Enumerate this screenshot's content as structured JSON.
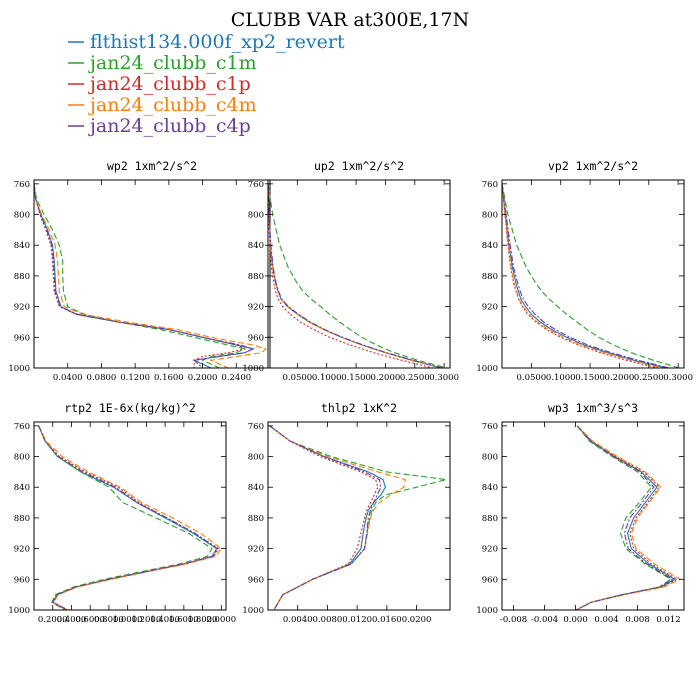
{
  "figure_title": "CLUBB VAR at300E,17N",
  "legend": [
    {
      "label": "flthist134.000f_xp2_revert",
      "color": "#1f77b4",
      "dash": ""
    },
    {
      "label": "jan24_clubb_c1m",
      "color": "#2ca02c",
      "dash": "6,3"
    },
    {
      "label": "jan24_clubb_c1p",
      "color": "#d62728",
      "dash": "2,2"
    },
    {
      "label": "jan24_clubb_c4m",
      "color": "#ff7f0e",
      "dash": "6,3"
    },
    {
      "label": "jan24_clubb_c4p",
      "color": "#6a3d9a",
      "dash": "6,2,2,2"
    }
  ],
  "chart_data": [
    {
      "type": "line",
      "title": "wp2  1xm^2/s^2",
      "xlim": [
        0.0,
        0.28
      ],
      "ylim": [
        1000,
        755
      ],
      "y_ticks": [
        760,
        800,
        840,
        880,
        920,
        960,
        1000
      ],
      "x_ticks": [
        0.04,
        0.08,
        0.12,
        0.16,
        0.2,
        0.24
      ],
      "x_tick_labels": [
        "0.0400",
        "0.0800",
        "0.1200",
        "0.1600",
        "0.2000",
        "0.2400"
      ],
      "y": [
        760,
        780,
        800,
        820,
        840,
        860,
        880,
        900,
        920,
        930,
        940,
        950,
        960,
        970,
        975,
        980,
        985,
        990,
        1000
      ],
      "series": [
        {
          "values": [
            0.0,
            0.002,
            0.008,
            0.016,
            0.022,
            0.024,
            0.025,
            0.026,
            0.032,
            0.05,
            0.1,
            0.16,
            0.2,
            0.24,
            0.26,
            0.25,
            0.22,
            0.19,
            0.21
          ]
        },
        {
          "values": [
            0.0,
            0.003,
            0.012,
            0.022,
            0.03,
            0.034,
            0.034,
            0.035,
            0.04,
            0.06,
            0.1,
            0.15,
            0.19,
            0.23,
            0.25,
            0.24,
            0.21,
            0.2,
            0.22
          ]
        },
        {
          "values": [
            0.0,
            0.002,
            0.007,
            0.014,
            0.02,
            0.022,
            0.023,
            0.024,
            0.03,
            0.05,
            0.1,
            0.16,
            0.2,
            0.24,
            0.25,
            0.23,
            0.2,
            0.19,
            0.19
          ]
        },
        {
          "values": [
            0.0,
            0.002,
            0.009,
            0.018,
            0.025,
            0.028,
            0.029,
            0.03,
            0.036,
            0.058,
            0.11,
            0.17,
            0.21,
            0.26,
            0.275,
            0.27,
            0.24,
            0.21,
            0.23
          ]
        },
        {
          "values": [
            0.0,
            0.002,
            0.008,
            0.015,
            0.021,
            0.023,
            0.024,
            0.025,
            0.031,
            0.052,
            0.1,
            0.16,
            0.2,
            0.245,
            0.26,
            0.25,
            0.22,
            0.19,
            0.2
          ]
        }
      ]
    },
    {
      "type": "line",
      "title": "up2  1xm^2/s^2",
      "xlim": [
        0.0,
        0.31
      ],
      "ylim": [
        1000,
        755
      ],
      "y_ticks": [
        760,
        800,
        840,
        880,
        920,
        960,
        1000
      ],
      "x_ticks": [
        0.05,
        0.1,
        0.15,
        0.2,
        0.25,
        0.3
      ],
      "x_tick_labels": [
        "0.0500",
        "0.1000",
        "0.1500",
        "0.2000",
        "0.2500",
        "0.3000"
      ],
      "y": [
        760,
        800,
        840,
        870,
        890,
        900,
        910,
        920,
        930,
        940,
        950,
        960,
        970,
        980,
        990,
        1000
      ],
      "series": [
        {
          "values": [
            0.0,
            0.002,
            0.004,
            0.008,
            0.013,
            0.017,
            0.022,
            0.033,
            0.05,
            0.07,
            0.095,
            0.125,
            0.16,
            0.2,
            0.245,
            0.295
          ]
        },
        {
          "values": [
            0.0,
            0.008,
            0.02,
            0.035,
            0.05,
            0.06,
            0.073,
            0.09,
            0.105,
            0.122,
            0.14,
            0.16,
            0.185,
            0.215,
            0.255,
            0.305
          ]
        },
        {
          "values": [
            0.0,
            0.001,
            0.003,
            0.006,
            0.01,
            0.013,
            0.017,
            0.025,
            0.038,
            0.055,
            0.078,
            0.105,
            0.14,
            0.18,
            0.228,
            0.28
          ]
        },
        {
          "values": [
            0.0,
            0.002,
            0.004,
            0.008,
            0.013,
            0.017,
            0.022,
            0.034,
            0.05,
            0.07,
            0.095,
            0.125,
            0.16,
            0.2,
            0.245,
            0.295
          ]
        },
        {
          "values": [
            0.0,
            0.002,
            0.005,
            0.009,
            0.014,
            0.018,
            0.023,
            0.035,
            0.052,
            0.072,
            0.097,
            0.127,
            0.162,
            0.202,
            0.247,
            0.297
          ]
        }
      ]
    },
    {
      "type": "line",
      "title": "vp2  1xm^2/s^2",
      "xlim": [
        0.0,
        0.31
      ],
      "ylim": [
        1000,
        755
      ],
      "y_ticks": [
        760,
        800,
        840,
        880,
        920,
        960,
        1000
      ],
      "x_ticks": [
        0.05,
        0.1,
        0.15,
        0.2,
        0.25,
        0.3
      ],
      "x_tick_labels": [
        "0.0500",
        "0.1000",
        "0.1500",
        "0.2000",
        "0.2500",
        "0.3000"
      ],
      "y": [
        760,
        800,
        840,
        870,
        890,
        900,
        910,
        920,
        930,
        940,
        950,
        960,
        970,
        980,
        990,
        1000
      ],
      "series": [
        {
          "values": [
            0.0,
            0.006,
            0.012,
            0.018,
            0.024,
            0.028,
            0.032,
            0.04,
            0.05,
            0.065,
            0.085,
            0.11,
            0.14,
            0.18,
            0.225,
            0.28
          ]
        },
        {
          "values": [
            0.0,
            0.01,
            0.025,
            0.042,
            0.058,
            0.068,
            0.08,
            0.095,
            0.11,
            0.128,
            0.145,
            0.165,
            0.19,
            0.22,
            0.258,
            0.302
          ]
        },
        {
          "values": [
            0.0,
            0.005,
            0.01,
            0.015,
            0.02,
            0.024,
            0.028,
            0.035,
            0.044,
            0.058,
            0.076,
            0.1,
            0.13,
            0.168,
            0.212,
            0.265
          ]
        },
        {
          "values": [
            0.0,
            0.005,
            0.011,
            0.016,
            0.021,
            0.025,
            0.029,
            0.036,
            0.046,
            0.06,
            0.08,
            0.105,
            0.135,
            0.175,
            0.22,
            0.272
          ]
        },
        {
          "values": [
            0.0,
            0.007,
            0.014,
            0.02,
            0.027,
            0.031,
            0.036,
            0.045,
            0.056,
            0.071,
            0.091,
            0.116,
            0.146,
            0.186,
            0.232,
            0.285
          ]
        }
      ]
    },
    {
      "type": "line",
      "title": "rtp2  1E-6x(kg/kg)^2",
      "xlim": [
        0.0,
        2.05
      ],
      "ylim": [
        1000,
        755
      ],
      "y_ticks": [
        760,
        800,
        840,
        880,
        920,
        960,
        1000
      ],
      "x_ticks": [
        0.2,
        0.4,
        0.6,
        0.8,
        1.0,
        1.2,
        1.4,
        1.6,
        1.8,
        2.0
      ],
      "x_tick_labels": [
        "0.2000",
        "0.4000",
        "0.6000",
        "0.8000",
        "1.0000",
        "1.2000",
        "1.4000",
        "1.6000",
        "1.8000",
        "2.0000"
      ],
      "y": [
        760,
        780,
        800,
        820,
        840,
        860,
        880,
        900,
        920,
        930,
        940,
        950,
        960,
        970,
        980,
        990,
        1000
      ],
      "series": [
        {
          "values": [
            0.05,
            0.12,
            0.25,
            0.5,
            0.85,
            1.1,
            1.4,
            1.7,
            1.95,
            1.9,
            1.6,
            1.2,
            0.8,
            0.45,
            0.25,
            0.2,
            0.35
          ]
        },
        {
          "values": [
            0.05,
            0.12,
            0.25,
            0.5,
            0.8,
            0.95,
            1.3,
            1.65,
            1.9,
            1.85,
            1.55,
            1.15,
            0.75,
            0.42,
            0.23,
            0.19,
            0.33
          ]
        },
        {
          "values": [
            0.05,
            0.12,
            0.27,
            0.55,
            0.9,
            1.12,
            1.42,
            1.72,
            1.97,
            1.92,
            1.6,
            1.2,
            0.8,
            0.45,
            0.25,
            0.2,
            0.35
          ]
        },
        {
          "values": [
            0.05,
            0.13,
            0.3,
            0.58,
            0.92,
            1.15,
            1.48,
            1.78,
            2.0,
            1.94,
            1.62,
            1.22,
            0.82,
            0.46,
            0.26,
            0.21,
            0.36
          ]
        },
        {
          "values": [
            0.05,
            0.12,
            0.26,
            0.52,
            0.87,
            1.1,
            1.42,
            1.72,
            1.96,
            1.91,
            1.6,
            1.2,
            0.8,
            0.45,
            0.24,
            0.2,
            0.36
          ]
        }
      ]
    },
    {
      "type": "line",
      "title": "thlp2  1xK^2",
      "xlim": [
        0.0,
        0.0245
      ],
      "ylim": [
        1000,
        755
      ],
      "y_ticks": [
        760,
        800,
        840,
        880,
        920,
        960,
        1000
      ],
      "x_ticks": [
        0.004,
        0.008,
        0.012,
        0.016,
        0.02
      ],
      "x_tick_labels": [
        "0.0040",
        "0.0080",
        "0.0120",
        "0.0160",
        "0.0200"
      ],
      "y": [
        760,
        780,
        800,
        820,
        830,
        840,
        850,
        860,
        870,
        880,
        900,
        920,
        940,
        960,
        980,
        1000
      ],
      "series": [
        {
          "values": [
            0.0002,
            0.003,
            0.0075,
            0.0135,
            0.0155,
            0.0158,
            0.0152,
            0.0142,
            0.0135,
            0.0132,
            0.0128,
            0.0125,
            0.011,
            0.006,
            0.002,
            0.0008
          ]
        },
        {
          "values": [
            0.0002,
            0.003,
            0.0085,
            0.016,
            0.024,
            0.02,
            0.0158,
            0.0145,
            0.014,
            0.0137,
            0.0133,
            0.013,
            0.0112,
            0.006,
            0.002,
            0.0008
          ]
        },
        {
          "values": [
            0.0002,
            0.003,
            0.007,
            0.0125,
            0.0145,
            0.0148,
            0.0143,
            0.0138,
            0.0133,
            0.013,
            0.0125,
            0.012,
            0.0108,
            0.006,
            0.002,
            0.0008
          ]
        },
        {
          "values": [
            0.0002,
            0.003,
            0.008,
            0.0148,
            0.0185,
            0.0183,
            0.0165,
            0.015,
            0.0142,
            0.0138,
            0.0134,
            0.013,
            0.0112,
            0.006,
            0.002,
            0.0008
          ]
        },
        {
          "values": [
            0.0002,
            0.003,
            0.0075,
            0.013,
            0.015,
            0.0152,
            0.0147,
            0.0142,
            0.0138,
            0.0135,
            0.0133,
            0.013,
            0.0112,
            0.006,
            0.002,
            0.0008
          ]
        }
      ]
    },
    {
      "type": "line",
      "title": "wp3  1xm^3/s^3",
      "xlim": [
        -0.0095,
        0.014
      ],
      "ylim": [
        1000,
        755
      ],
      "y_ticks": [
        760,
        800,
        840,
        880,
        920,
        960,
        1000
      ],
      "x_ticks": [
        -0.008,
        -0.004,
        0.0,
        0.004,
        0.008,
        0.012
      ],
      "x_tick_labels": [
        "-0.008",
        "-0.004",
        "0.000",
        "0.004",
        "0.008",
        "0.012"
      ],
      "y": [
        760,
        780,
        800,
        820,
        840,
        860,
        880,
        900,
        920,
        940,
        960,
        970,
        980,
        990,
        1000
      ],
      "series": [
        {
          "values": [
            0.0002,
            0.002,
            0.005,
            0.0085,
            0.0105,
            0.009,
            0.0075,
            0.0067,
            0.0072,
            0.0095,
            0.0128,
            0.011,
            0.006,
            0.002,
            0.0001
          ]
        },
        {
          "values": [
            0.0002,
            0.0018,
            0.0047,
            0.008,
            0.0098,
            0.0082,
            0.0065,
            0.0058,
            0.0065,
            0.009,
            0.0123,
            0.0108,
            0.006,
            0.002,
            0.0001
          ]
        },
        {
          "values": [
            0.0002,
            0.0021,
            0.0052,
            0.0088,
            0.0108,
            0.0093,
            0.0078,
            0.007,
            0.0075,
            0.0098,
            0.0131,
            0.0112,
            0.0062,
            0.002,
            0.0001
          ]
        },
        {
          "values": [
            0.0002,
            0.0022,
            0.0054,
            0.009,
            0.011,
            0.0095,
            0.008,
            0.0072,
            0.0078,
            0.0102,
            0.0135,
            0.0114,
            0.0063,
            0.002,
            0.0001
          ]
        },
        {
          "values": [
            0.0002,
            0.0019,
            0.0049,
            0.0083,
            0.0101,
            0.0086,
            0.007,
            0.0063,
            0.0068,
            0.0092,
            0.0125,
            0.0109,
            0.006,
            0.002,
            0.0001
          ]
        }
      ]
    }
  ]
}
